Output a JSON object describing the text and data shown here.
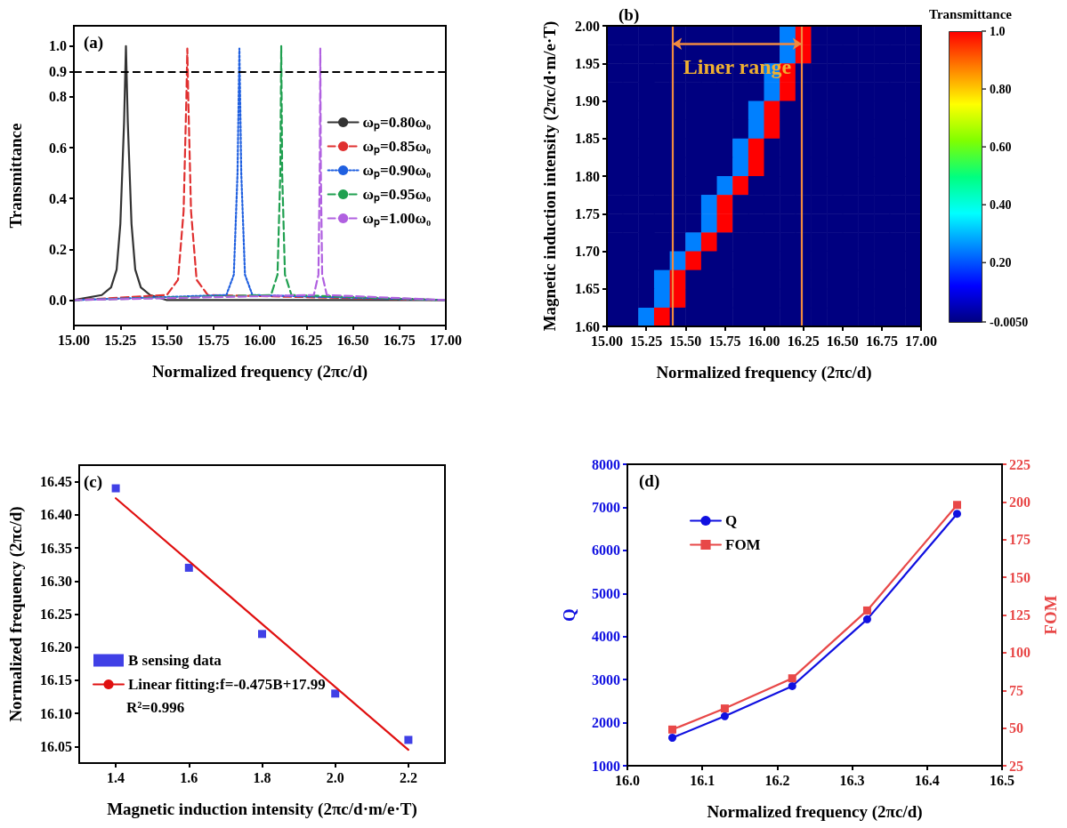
{
  "chart_data": [
    {
      "type": "line",
      "title": "(a)",
      "xlabel": "Normalized frequency (2πc/d)",
      "ylabel": "Transmittance",
      "xlim": [
        15,
        17
      ],
      "ylim": [
        -0.1,
        1.08
      ],
      "xticks": [
        {
          "value": 15,
          "label": "15.00"
        },
        {
          "value": 15.25,
          "label": "15.25"
        },
        {
          "value": 15.5,
          "label": "15.50"
        },
        {
          "value": 15.75,
          "label": "15.75"
        },
        {
          "value": 16,
          "label": "16.00"
        },
        {
          "value": 16.25,
          "label": "16.25"
        },
        {
          "value": 16.5,
          "label": "16.50"
        },
        {
          "value": 16.75,
          "label": "16.75"
        },
        {
          "value": 17,
          "label": "17.00"
        }
      ],
      "yticks": [
        {
          "value": 0,
          "label": "0.0"
        },
        {
          "value": 0.2,
          "label": "0.2"
        },
        {
          "value": 0.4,
          "label": "0.4"
        },
        {
          "value": 0.6,
          "label": "0.6"
        },
        {
          "value": 0.8,
          "label": "0.8"
        },
        {
          "value": 0.9,
          "label": "0.9"
        },
        {
          "value": 1,
          "label": "1.0"
        }
      ],
      "legend": "top right",
      "marker": "none",
      "ref_lines": [
        {
          "axis": "y",
          "value": 0.9,
          "color": "#000000",
          "line_style": "dashed"
        }
      ],
      "series": [
        {
          "name": "ωₚ=0.80ω₀",
          "color": "#333333",
          "line_style": "solid",
          "x": [
            15.0,
            15.15,
            15.2,
            15.23,
            15.25,
            15.27,
            15.28,
            15.29,
            15.31,
            15.33,
            15.36,
            15.41,
            15.5,
            17.0
          ],
          "values": [
            0,
            0.02,
            0.05,
            0.12,
            0.3,
            0.7,
            1.0,
            0.7,
            0.3,
            0.12,
            0.05,
            0.02,
            0,
            0
          ]
        },
        {
          "name": "ωₚ=0.85ω₀",
          "color": "#e03030",
          "line_style": "dashed",
          "x": [
            15.0,
            15.5,
            15.56,
            15.59,
            15.605,
            15.61,
            15.615,
            15.63,
            15.66,
            15.72,
            17.0
          ],
          "values": [
            0,
            0.02,
            0.08,
            0.35,
            0.8,
            0.99,
            0.8,
            0.35,
            0.08,
            0.02,
            0
          ]
        },
        {
          "name": "ωₚ=0.90ω₀",
          "color": "#2060e0",
          "line_style": "dotted",
          "x": [
            15.0,
            15.82,
            15.86,
            15.88,
            15.89,
            15.9,
            15.92,
            15.96,
            17.0
          ],
          "values": [
            0,
            0.02,
            0.1,
            0.5,
            0.99,
            0.5,
            0.1,
            0.02,
            0
          ]
        },
        {
          "name": "ωₚ=0.95ω₀",
          "color": "#20a050",
          "line_style": "dashed",
          "x": [
            15.0,
            16.06,
            16.095,
            16.11,
            16.115,
            16.12,
            16.135,
            16.17,
            17.0
          ],
          "values": [
            0,
            0.02,
            0.1,
            0.5,
            1.0,
            0.5,
            0.1,
            0.02,
            0
          ]
        },
        {
          "name": "ωₚ=1.00ω₀",
          "color": "#b060e0",
          "line_style": "dashed",
          "x": [
            15.0,
            16.29,
            16.315,
            16.322,
            16.325,
            16.328,
            16.335,
            16.36,
            17.0
          ],
          "values": [
            0,
            0.02,
            0.1,
            0.5,
            0.99,
            0.5,
            0.1,
            0.02,
            0
          ]
        }
      ]
    },
    {
      "type": "heatmap",
      "title": "(b)",
      "xlabel": "Normalized frequency (2πc/d)",
      "ylabel": "Magnetic induction intensity (2πc/d·m/e·T)",
      "clabel": "Transmittance",
      "xlim": [
        15,
        17
      ],
      "ylim": [
        1.6,
        2.0
      ],
      "xticks": [
        {
          "value": 15,
          "label": "15.00"
        },
        {
          "value": 15.25,
          "label": "15.25"
        },
        {
          "value": 15.5,
          "label": "15.50"
        },
        {
          "value": 15.75,
          "label": "15.75"
        },
        {
          "value": 16,
          "label": "16.00"
        },
        {
          "value": 16.25,
          "label": "16.25"
        },
        {
          "value": 16.5,
          "label": "16.50"
        },
        {
          "value": 16.75,
          "label": "16.75"
        },
        {
          "value": 17,
          "label": "17.00"
        }
      ],
      "yticks": [
        {
          "value": 1.6,
          "label": "1.60"
        },
        {
          "value": 1.65,
          "label": "1.65"
        },
        {
          "value": 1.7,
          "label": "1.70"
        },
        {
          "value": 1.75,
          "label": "1.75"
        },
        {
          "value": 1.8,
          "label": "1.80"
        },
        {
          "value": 1.85,
          "label": "1.85"
        },
        {
          "value": 1.9,
          "label": "1.90"
        },
        {
          "value": 1.95,
          "label": "1.95"
        },
        {
          "value": 2.0,
          "label": "2.00"
        }
      ],
      "clim": [
        -0.005,
        1.0
      ],
      "cticks": [
        {
          "value": -0.005,
          "label": "-0.0050"
        },
        {
          "value": 0.2,
          "label": "0.20"
        },
        {
          "value": 0.4,
          "label": "0.40"
        },
        {
          "value": 0.6,
          "label": "0.60"
        },
        {
          "value": 0.8,
          "label": "0.80"
        },
        {
          "value": 1.0,
          "label": "1.0"
        }
      ],
      "ref_lines": [
        {
          "axis": "x",
          "value": 15.42,
          "color": "#f08a40"
        },
        {
          "axis": "x",
          "value": 16.24,
          "color": "#f08a40"
        }
      ],
      "annotations": [
        "Liner range"
      ],
      "cells": [
        [
          -0.005,
          -0.005,
          -0.005,
          -0.005,
          -0.005,
          -0.005,
          -0.005,
          -0.005,
          -0.005,
          -0.005,
          -0.005,
          0.25,
          1.0,
          -0.005,
          -0.005,
          -0.005,
          -0.005,
          -0.005,
          -0.005,
          -0.005
        ],
        [
          -0.005,
          -0.005,
          -0.005,
          -0.005,
          -0.005,
          -0.005,
          -0.005,
          -0.005,
          -0.005,
          -0.005,
          -0.005,
          0.25,
          1.0,
          -0.005,
          -0.005,
          -0.005,
          -0.005,
          -0.005,
          -0.005,
          -0.005
        ],
        [
          -0.005,
          -0.005,
          -0.005,
          -0.005,
          -0.005,
          -0.005,
          -0.005,
          -0.005,
          -0.005,
          -0.005,
          0.25,
          1.0,
          -0.005,
          -0.005,
          -0.005,
          -0.005,
          -0.005,
          -0.005,
          -0.005,
          -0.005
        ],
        [
          -0.005,
          -0.005,
          -0.005,
          -0.005,
          -0.005,
          -0.005,
          -0.005,
          -0.005,
          -0.005,
          -0.005,
          0.25,
          1.0,
          -0.005,
          -0.005,
          -0.005,
          -0.005,
          -0.005,
          -0.005,
          -0.005,
          -0.005
        ],
        [
          -0.005,
          -0.005,
          -0.005,
          -0.005,
          -0.005,
          -0.005,
          -0.005,
          -0.005,
          -0.005,
          0.25,
          1.0,
          -0.005,
          -0.005,
          -0.005,
          -0.005,
          -0.005,
          -0.005,
          -0.005,
          -0.005,
          -0.005
        ],
        [
          -0.005,
          -0.005,
          -0.005,
          -0.005,
          -0.005,
          -0.005,
          -0.005,
          -0.005,
          -0.005,
          0.25,
          1.0,
          -0.005,
          -0.005,
          -0.005,
          -0.005,
          -0.005,
          -0.005,
          -0.005,
          -0.005,
          -0.005
        ],
        [
          -0.005,
          -0.005,
          -0.005,
          -0.005,
          -0.005,
          -0.005,
          -0.005,
          -0.005,
          0.25,
          1.0,
          -0.005,
          -0.005,
          -0.005,
          -0.005,
          -0.005,
          -0.005,
          -0.005,
          -0.005,
          -0.005,
          -0.005
        ],
        [
          -0.005,
          -0.005,
          -0.005,
          -0.005,
          -0.005,
          -0.005,
          -0.005,
          -0.005,
          0.25,
          1.0,
          -0.005,
          -0.005,
          -0.005,
          -0.005,
          -0.005,
          -0.005,
          -0.005,
          -0.005,
          -0.005,
          -0.005
        ],
        [
          -0.005,
          -0.005,
          -0.005,
          -0.005,
          -0.005,
          -0.005,
          -0.005,
          0.25,
          1.0,
          -0.005,
          -0.005,
          -0.005,
          -0.005,
          -0.005,
          -0.005,
          -0.005,
          -0.005,
          -0.005,
          -0.005,
          -0.005
        ],
        [
          -0.005,
          -0.005,
          -0.005,
          -0.005,
          -0.005,
          -0.005,
          0.25,
          1.0,
          -0.005,
          -0.005,
          -0.005,
          -0.005,
          -0.005,
          -0.005,
          -0.005,
          -0.005,
          -0.005,
          -0.005,
          -0.005,
          -0.005
        ],
        [
          -0.005,
          -0.005,
          -0.005,
          -0.005,
          -0.005,
          -0.005,
          0.25,
          1.0,
          -0.005,
          -0.005,
          -0.005,
          -0.005,
          -0.005,
          -0.005,
          -0.005,
          -0.005,
          -0.005,
          -0.005,
          -0.005,
          -0.005
        ],
        [
          -0.005,
          -0.005,
          -0.005,
          -0.005,
          -0.005,
          0.25,
          1.0,
          -0.005,
          -0.005,
          -0.005,
          -0.005,
          -0.005,
          -0.005,
          -0.005,
          -0.005,
          -0.005,
          -0.005,
          -0.005,
          -0.005,
          -0.005
        ],
        [
          -0.005,
          -0.005,
          -0.005,
          -0.005,
          0.25,
          1.0,
          -0.005,
          -0.005,
          -0.005,
          -0.005,
          -0.005,
          -0.005,
          -0.005,
          -0.005,
          -0.005,
          -0.005,
          -0.005,
          -0.005,
          -0.005,
          -0.005
        ],
        [
          -0.005,
          -0.005,
          -0.005,
          0.25,
          1.0,
          -0.005,
          -0.005,
          -0.005,
          -0.005,
          -0.005,
          -0.005,
          -0.005,
          -0.005,
          -0.005,
          -0.005,
          -0.005,
          -0.005,
          -0.005,
          -0.005,
          -0.005
        ],
        [
          -0.005,
          -0.005,
          -0.005,
          0.25,
          1.0,
          -0.005,
          -0.005,
          -0.005,
          -0.005,
          -0.005,
          -0.005,
          -0.005,
          -0.005,
          -0.005,
          -0.005,
          -0.005,
          -0.005,
          -0.005,
          -0.005,
          -0.005
        ],
        [
          -0.005,
          -0.005,
          0.25,
          1.0,
          -0.005,
          -0.005,
          -0.005,
          -0.005,
          -0.005,
          -0.005,
          -0.005,
          -0.005,
          -0.005,
          -0.005,
          -0.005,
          -0.005,
          -0.005,
          -0.005,
          -0.005,
          -0.005
        ]
      ]
    },
    {
      "type": "scatter",
      "title": "(c)",
      "xlabel": "Magnetic induction intensity (2πc/d·m/e·T)",
      "ylabel": "Normalized frequency (2πc/d)",
      "xlim": [
        1.3,
        2.3
      ],
      "ylim": [
        16.025,
        16.475
      ],
      "xticks": [
        {
          "value": 1.4,
          "label": "1.4"
        },
        {
          "value": 1.6,
          "label": "1.6"
        },
        {
          "value": 1.8,
          "label": "1.8"
        },
        {
          "value": 2.0,
          "label": "2.0"
        },
        {
          "value": 2.2,
          "label": "2.2"
        }
      ],
      "yticks": [
        {
          "value": 16.05,
          "label": "16.05"
        },
        {
          "value": 16.1,
          "label": "16.10"
        },
        {
          "value": 16.15,
          "label": "16.15"
        },
        {
          "value": 16.2,
          "label": "16.20"
        },
        {
          "value": 16.25,
          "label": "16.25"
        },
        {
          "value": 16.3,
          "label": "16.30"
        },
        {
          "value": 16.35,
          "label": "16.35"
        },
        {
          "value": 16.4,
          "label": "16.40"
        },
        {
          "value": 16.45,
          "label": "16.45"
        }
      ],
      "legend": "bottom left",
      "annotations": [
        "R²=0.996"
      ],
      "series": [
        {
          "name": "B sensing data",
          "type": "scatter",
          "marker": "square",
          "color": "#1010e0",
          "x": [
            1.4,
            1.6,
            1.8,
            2.0,
            2.2
          ],
          "values": [
            16.44,
            16.32,
            16.22,
            16.13,
            16.06
          ]
        },
        {
          "name": "Linear fitting:f=-0.475B+17.99",
          "type": "line",
          "marker": "none",
          "color": "#e01010",
          "x": [
            1.4,
            2.2
          ],
          "values": [
            16.425,
            16.045
          ]
        }
      ]
    },
    {
      "type": "line",
      "title": "(d)",
      "xlabel": "Normalized frequency (2πc/d)",
      "ylabel": "Q",
      "y2label": "FOM",
      "xlim": [
        16.0,
        16.5
      ],
      "ylim": [
        1000,
        8000
      ],
      "y2lim": [
        25,
        225
      ],
      "xticks": [
        {
          "value": 16.0,
          "label": "16.0"
        },
        {
          "value": 16.1,
          "label": "16.1"
        },
        {
          "value": 16.2,
          "label": "16.2"
        },
        {
          "value": 16.3,
          "label": "16.3"
        },
        {
          "value": 16.4,
          "label": "16.4"
        },
        {
          "value": 16.5,
          "label": "16.5"
        }
      ],
      "yticks": [
        1000,
        2000,
        3000,
        4000,
        5000,
        6000,
        7000,
        8000
      ],
      "y2ticks": [
        25,
        50,
        75,
        100,
        125,
        150,
        175,
        200,
        225
      ],
      "legend": "top left",
      "x": [
        16.06,
        16.13,
        16.22,
        16.32,
        16.44
      ],
      "series": [
        {
          "name": "Q",
          "color": "#1010e0",
          "marker": "circle",
          "values": [
            1650,
            2150,
            2850,
            4400,
            6850
          ]
        },
        {
          "name": "FOM",
          "color": "#e84848",
          "marker": "square",
          "axis": "y2",
          "values": [
            49,
            63,
            83,
            128,
            198
          ]
        }
      ]
    }
  ]
}
